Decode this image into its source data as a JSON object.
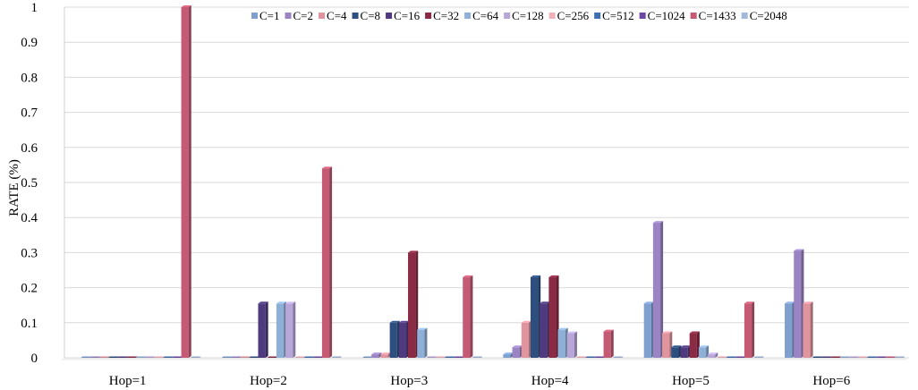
{
  "chart_data": {
    "type": "bar",
    "title": "",
    "xlabel": "",
    "ylabel": "RATE (%)",
    "ylim": [
      0,
      1
    ],
    "yticks": [
      "0",
      "0.1",
      "0.2",
      "0.3",
      "0.4",
      "0.5",
      "0.6",
      "0.7",
      "0.8",
      "0.9",
      "1"
    ],
    "categories": [
      "Hop=1",
      "Hop=2",
      "Hop=3",
      "Hop=4",
      "Hop=5",
      "Hop=6"
    ],
    "grid": "horizontal",
    "legend_position": "top-right",
    "series": [
      {
        "name": "C=1",
        "color": "#7f9fcf",
        "values": [
          0,
          0,
          0,
          0.01,
          0.155,
          0.155
        ]
      },
      {
        "name": "C=2",
        "color": "#9a84c4",
        "values": [
          0,
          0,
          0.01,
          0.03,
          0.385,
          0.305
        ]
      },
      {
        "name": "C=4",
        "color": "#e0949e",
        "values": [
          0,
          0,
          0.01,
          0.1,
          0.07,
          0.155
        ]
      },
      {
        "name": "C=8",
        "color": "#2d4f7f",
        "values": [
          0,
          0,
          0.1,
          0.23,
          0.03,
          0
        ]
      },
      {
        "name": "C=16",
        "color": "#4f3a80",
        "values": [
          0,
          0.155,
          0.1,
          0.155,
          0.03,
          0
        ]
      },
      {
        "name": "C=32",
        "color": "#8b2a45",
        "values": [
          0,
          0,
          0.3,
          0.23,
          0.07,
          0
        ]
      },
      {
        "name": "C=64",
        "color": "#8fb0d6",
        "values": [
          0,
          0.155,
          0.08,
          0.08,
          0.03,
          0
        ]
      },
      {
        "name": "C=128",
        "color": "#b8a6d8",
        "values": [
          0,
          0.155,
          0,
          0.07,
          0.01,
          0
        ]
      },
      {
        "name": "C=256",
        "color": "#f0b2b9",
        "values": [
          0,
          0,
          0,
          0,
          0,
          0
        ]
      },
      {
        "name": "C=512",
        "color": "#3f6fb0",
        "values": [
          0,
          0,
          0,
          0,
          0,
          0
        ]
      },
      {
        "name": "C=1024",
        "color": "#6e47a3",
        "values": [
          0,
          0,
          0,
          0,
          0,
          0
        ]
      },
      {
        "name": "C=1433",
        "color": "#c45a74",
        "values": [
          1.0,
          0.54,
          0.23,
          0.075,
          0.155,
          0
        ]
      },
      {
        "name": "C=2048",
        "color": "#a3b9db",
        "values": [
          0,
          0,
          0,
          0,
          0,
          0
        ]
      }
    ]
  }
}
